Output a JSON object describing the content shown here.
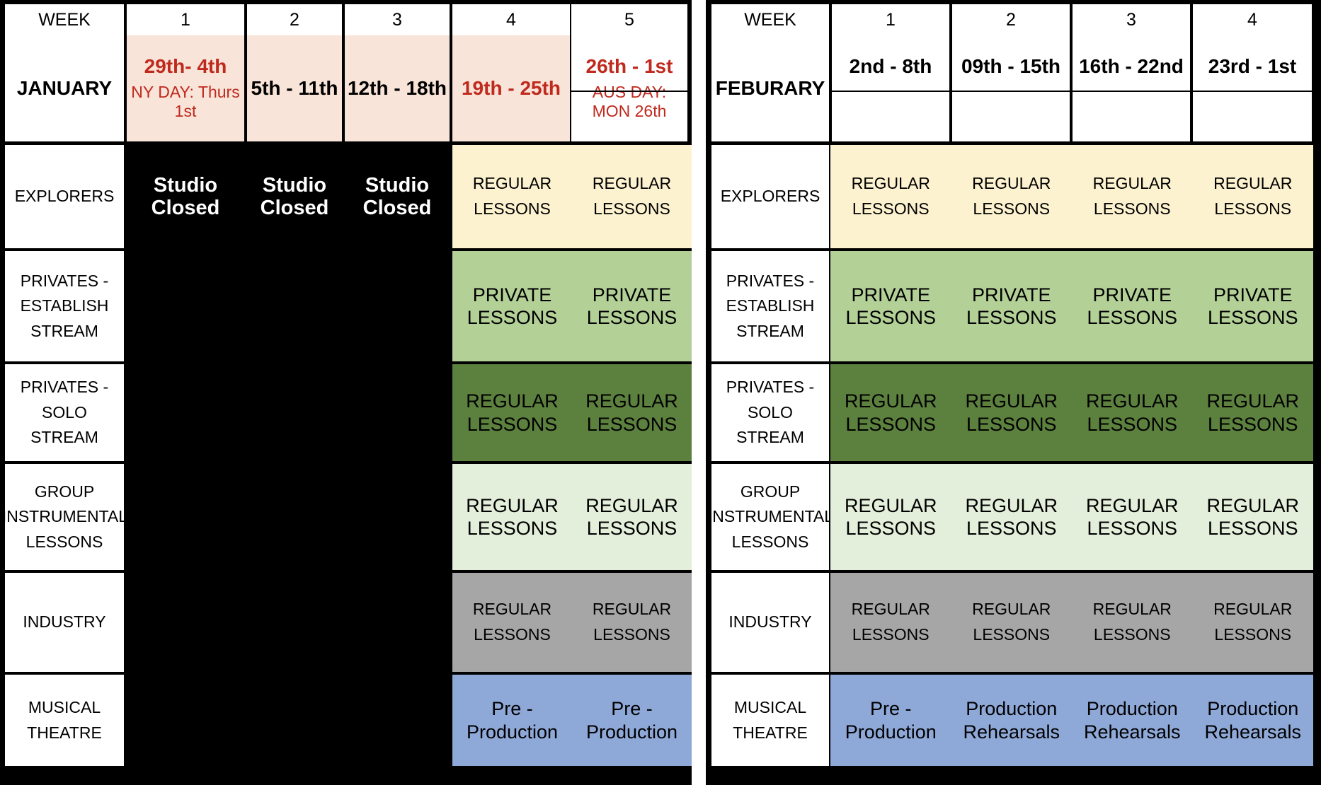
{
  "colors": {
    "peach": "#f8e4d8",
    "cream": "#fdf2cf",
    "light_green": "#b3d097",
    "dark_green": "#5c803d",
    "pale_green": "#e4efdb",
    "grey": "#a6a6a6",
    "blue": "#8ea8d8",
    "red_text": "#c0291d",
    "black": "#000000"
  },
  "january": {
    "week_label": "WEEK",
    "month": "JANUARY",
    "weeks": [
      "1",
      "2",
      "3",
      "4",
      "5"
    ],
    "dates": [
      "29th- 4th",
      "5th - 11th",
      "12th - 18th",
      "19th - 25th",
      "26th - 1st"
    ],
    "notes": [
      "NY DAY: Thurs 1st",
      "AUS DAY: MON 26th"
    ],
    "closed_label": "Studio Closed"
  },
  "february": {
    "week_label": "WEEK",
    "month": "FEBURARY",
    "weeks": [
      "1",
      "2",
      "3",
      "4"
    ],
    "dates": [
      "2nd - 8th",
      "09th - 15th",
      "16th - 22nd",
      "23rd - 1st"
    ]
  },
  "rows": {
    "explorers": "EXPLORERS",
    "privates_establish": "PRIVATES - ESTABLISH STREAM",
    "privates_solo": "PRIVATES - SOLO STREAM",
    "group_instrumental": "GROUP INSTRUMENTAL LESSONS",
    "industry": "INDUSTRY",
    "musical_theatre": "MUSICAL THEATRE"
  },
  "lessons": {
    "regular": "REGULAR LESSONS",
    "private": "PRIVATE LESSONS",
    "pre_production": "Pre - Production",
    "production_rehearsals": "Production Rehearsals"
  }
}
